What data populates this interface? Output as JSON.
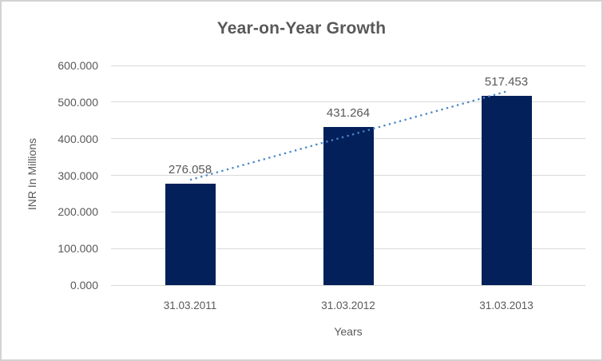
{
  "colors": {
    "bar": "#03205a",
    "trendline": "#4a86c8",
    "gridline": "#d9d9d9",
    "text": "#595959",
    "frame_border": "#d2d2d2",
    "background": "#ffffff"
  },
  "chart_data": {
    "type": "bar",
    "title": "Year-on-Year Growth",
    "xlabel": "Years",
    "ylabel": "INR In Millions",
    "categories": [
      "31.03.2011",
      "31.03.2012",
      "31.03.2013"
    ],
    "values": [
      276.058,
      431.264,
      517.453
    ],
    "data_labels": [
      "276.058",
      "431.264",
      "517.453"
    ],
    "yticks": [
      {
        "value": 0,
        "label": "0.000"
      },
      {
        "value": 100,
        "label": "100.000"
      },
      {
        "value": 200,
        "label": "200.000"
      },
      {
        "value": 300,
        "label": "300.000"
      },
      {
        "value": 400,
        "label": "400.000"
      },
      {
        "value": 500,
        "label": "500.000"
      },
      {
        "value": 600,
        "label": "600.000"
      }
    ],
    "ylim": [
      0,
      600
    ],
    "grid": "horizontal",
    "legend": "none",
    "trendline": {
      "type": "linear",
      "style": "dotted",
      "endpoint_values": [
        287.561,
        528.956
      ]
    }
  }
}
